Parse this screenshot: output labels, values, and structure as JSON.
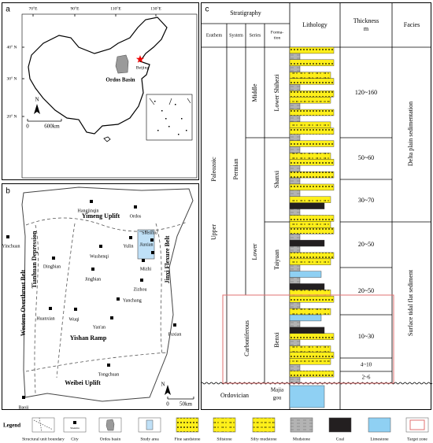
{
  "panel_a": {
    "label": "a",
    "longitudes": [
      "70°E",
      "90°E",
      "110°E",
      "130°E"
    ],
    "latitudes": [
      "40° N",
      "30° N",
      "20° N"
    ],
    "city": "Beijing",
    "basin": "Ordos Basin",
    "north": "N",
    "scale": [
      "0",
      "600km"
    ]
  },
  "panel_b": {
    "label": "b",
    "units": [
      "Yimeng Uplift",
      "Tianhuan Depression",
      "Western Overthrust Belt",
      "Jinxi Flexure Belt",
      "Yishan Ramp",
      "Weibei Uplift"
    ],
    "cities": [
      "Ordos",
      "Hangjinqin",
      "Shenmu",
      "Wushenqi",
      "Yulin",
      "Jiaxian",
      "Mizhi",
      "Yinchuan",
      "Dingbian",
      "Jingbian",
      "Zizhou",
      "Huanxian",
      "Wuqi",
      "Yanchang",
      "Yan'an",
      "Fuxian",
      "Tongchuan",
      "Baoji"
    ],
    "north": "N",
    "scale": [
      "0",
      "50km"
    ]
  },
  "panel_c": {
    "label": "c",
    "header": {
      "stratigraphy": "Stratigraphy",
      "erathem": "Erathem",
      "system": "System",
      "series": "Series",
      "formation": [
        "Forma-",
        "tion"
      ],
      "lithology": "Lithology",
      "thickness": [
        "Thickness",
        "m"
      ],
      "facies": "Facies"
    },
    "erathem": [
      "Paleozoic",
      "Upper"
    ],
    "systems": [
      "Permian",
      "Carboniferous",
      "Ordovician"
    ],
    "series": [
      "Middle",
      "Lower"
    ],
    "formations": [
      "Lower Shihezi",
      "Shanxi",
      "Taiyuan",
      "Benxi"
    ],
    "majiagou": [
      "Majia",
      "gou"
    ],
    "thickness": [
      "120~160",
      "50~60",
      "30~70",
      "20~50",
      "20~50",
      "10~30",
      "4~10",
      "2~6"
    ],
    "facies": [
      "Delta plain sedimentation",
      "Surface tidal flat sediment"
    ]
  },
  "legend": {
    "title": "Legend",
    "city_sample": "Shenmu",
    "items": [
      "Structural unit boundary",
      "City",
      "Ordos basin",
      "Study area",
      "Fine sandstone",
      "Siltstone",
      "Silty mudstone",
      "Mudstone",
      "Coal",
      "Limestone",
      "Target zone"
    ]
  }
}
